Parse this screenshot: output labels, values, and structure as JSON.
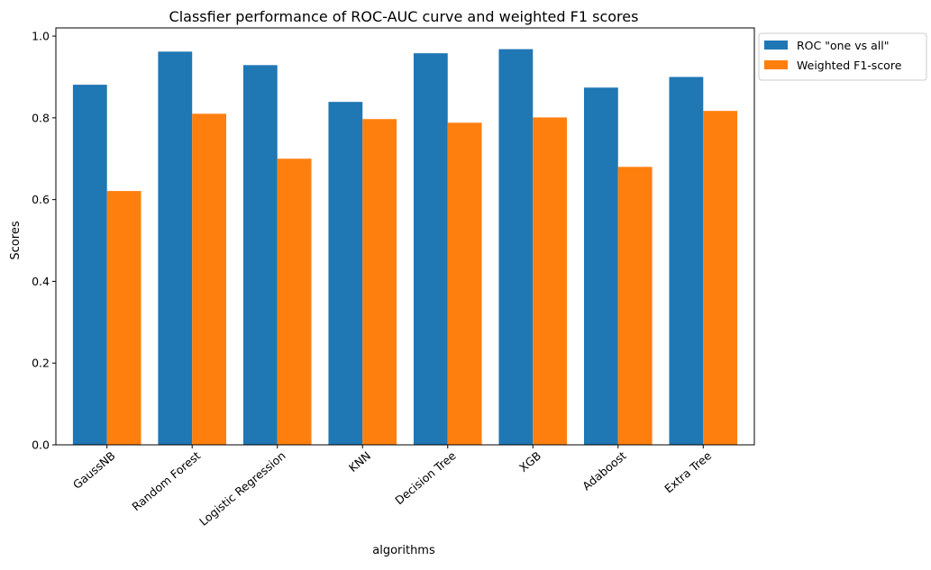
{
  "chart_data": {
    "type": "bar",
    "title": "Classfier performance of ROC-AUC curve and weighted F1 scores",
    "xlabel": "algorithms",
    "ylabel": "Scores",
    "categories": [
      "GaussNB",
      "Random Forest",
      "Logistic Regression",
      "KNN",
      "Decision Tree",
      "XGB",
      "Adaboost",
      "Extra Tree"
    ],
    "series": [
      {
        "name": "ROC \"one vs all\"",
        "color": "#1f77b4",
        "values": [
          0.881,
          0.962,
          0.929,
          0.839,
          0.958,
          0.968,
          0.874,
          0.9
        ]
      },
      {
        "name": "Weighted F1-score",
        "color": "#ff7f0e",
        "values": [
          0.621,
          0.81,
          0.7,
          0.797,
          0.788,
          0.801,
          0.68,
          0.817
        ]
      }
    ],
    "ylim": [
      0,
      1.02
    ],
    "yticks": [
      "0.0",
      "0.2",
      "0.4",
      "0.6",
      "0.8",
      "1.0"
    ],
    "grid": false,
    "legend_position": "outside-top-right"
  }
}
